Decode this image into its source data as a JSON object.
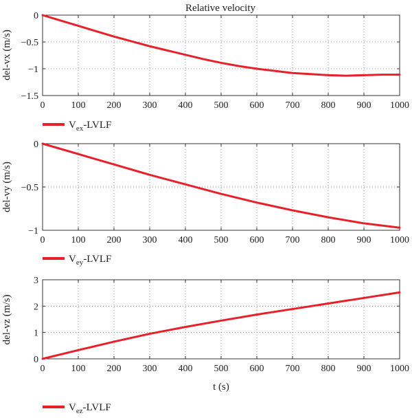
{
  "title": "Relative velocity",
  "chart_data": [
    {
      "type": "line",
      "xlabel": "",
      "ylabel": "del-vx (m/s)",
      "xlim": [
        0,
        1000
      ],
      "ylim": [
        -1.5,
        0
      ],
      "xticks": [
        0,
        100,
        200,
        300,
        400,
        500,
        600,
        700,
        800,
        900,
        1000
      ],
      "yticks": [
        0,
        -0.5,
        -1,
        -1.5
      ],
      "ytick_labels": [
        "0",
        "−0.5",
        "−1",
        "−1.5"
      ],
      "grid": true,
      "legend": {
        "placement": "below-axes",
        "main": "V",
        "sub": "ex",
        "rest": "-LVLF"
      },
      "series": [
        {
          "name": "Vex-LVLF",
          "color": "#e8202a",
          "x": [
            0,
            50,
            100,
            150,
            200,
            250,
            300,
            350,
            400,
            450,
            500,
            550,
            600,
            650,
            700,
            750,
            800,
            850,
            900,
            950,
            1000
          ],
          "y": [
            0,
            -0.1,
            -0.2,
            -0.3,
            -0.4,
            -0.49,
            -0.58,
            -0.66,
            -0.74,
            -0.82,
            -0.89,
            -0.95,
            -1.0,
            -1.04,
            -1.08,
            -1.1,
            -1.12,
            -1.13,
            -1.12,
            -1.11,
            -1.11
          ]
        }
      ]
    },
    {
      "type": "line",
      "xlabel": "",
      "ylabel": "del-vy (m/s)",
      "xlim": [
        0,
        1000
      ],
      "ylim": [
        -1,
        0
      ],
      "xticks": [
        0,
        100,
        200,
        300,
        400,
        500,
        600,
        700,
        800,
        900,
        1000
      ],
      "yticks": [
        0,
        -0.5,
        -1
      ],
      "ytick_labels": [
        "0",
        "−0.5",
        "−1"
      ],
      "grid": true,
      "legend": {
        "placement": "below-axes",
        "main": "V",
        "sub": "ey",
        "rest": "-LVLF"
      },
      "series": [
        {
          "name": "Vey-LVLF",
          "color": "#e8202a",
          "x": [
            0,
            100,
            200,
            300,
            400,
            500,
            600,
            700,
            800,
            900,
            1000
          ],
          "y": [
            0,
            -0.12,
            -0.24,
            -0.36,
            -0.47,
            -0.58,
            -0.68,
            -0.77,
            -0.85,
            -0.92,
            -0.97
          ]
        }
      ]
    },
    {
      "type": "line",
      "xlabel": "t (s)",
      "ylabel": "del-vz (m/s)",
      "xlim": [
        0,
        1000
      ],
      "ylim": [
        0,
        3
      ],
      "xticks": [
        0,
        100,
        200,
        300,
        400,
        500,
        600,
        700,
        800,
        900,
        1000
      ],
      "yticks": [
        0,
        1,
        2,
        3
      ],
      "ytick_labels": [
        "0",
        "1",
        "2",
        "3"
      ],
      "grid": true,
      "legend": {
        "placement": "below-axes",
        "main": "V",
        "sub": "ez",
        "rest": "-LVLF"
      },
      "series": [
        {
          "name": "Vez-LVLF",
          "color": "#e8202a",
          "x": [
            0,
            100,
            200,
            300,
            400,
            500,
            600,
            700,
            800,
            900,
            1000
          ],
          "y": [
            0,
            0.33,
            0.65,
            0.95,
            1.21,
            1.45,
            1.68,
            1.89,
            2.1,
            2.31,
            2.52
          ]
        }
      ]
    }
  ]
}
